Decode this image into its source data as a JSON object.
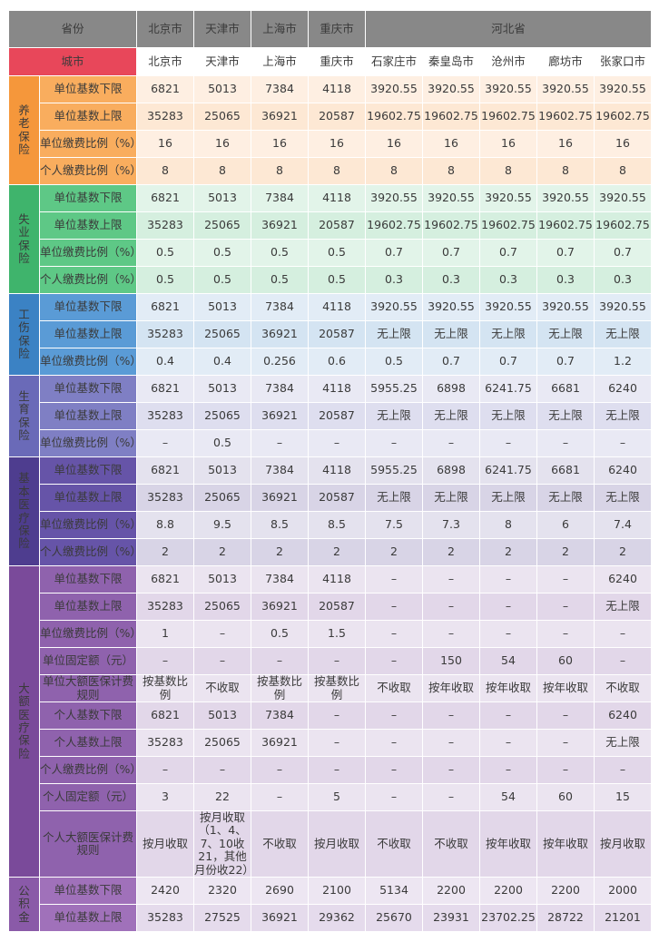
{
  "header": {
    "province_label": "省份",
    "city_label": "城市",
    "provinces": [
      "北京市",
      "天津市",
      "上海市",
      "重庆市",
      "河北省"
    ],
    "cities": [
      "北京市",
      "天津市",
      "上海市",
      "重庆市",
      "石家庄市",
      "秦皇岛市",
      "沧州市",
      "廊坊市",
      "张家口市"
    ]
  },
  "colors": {
    "province_header_bg": "#888888",
    "city_header_bg": "#e8475a",
    "pension": "#f5973b",
    "unemployment": "#3fb46c",
    "injury": "#3b82c4",
    "maternity": "#6a6ab8",
    "medical": "#4e3d8f",
    "major_medical": "#7a4a9a",
    "housing_fund": "#8a5aa8"
  },
  "sections": [
    {
      "name": "养老保险",
      "color": "#f5973b",
      "label_bg": "#f9ad5e",
      "rows": [
        {
          "label": "单位基数下限",
          "values": [
            "6821",
            "5013",
            "7384",
            "4118",
            "3920.55",
            "3920.55",
            "3920.55",
            "3920.55",
            "3920.55"
          ]
        },
        {
          "label": "单位基数上限",
          "values": [
            "35283",
            "25065",
            "36921",
            "20587",
            "19602.75",
            "19602.75",
            "19602.75",
            "19602.75",
            "19602.75"
          ]
        },
        {
          "label": "单位缴费比例（%）",
          "values": [
            "16",
            "16",
            "16",
            "16",
            "16",
            "16",
            "16",
            "16",
            "16"
          ]
        },
        {
          "label": "个人缴费比例（%）",
          "values": [
            "8",
            "8",
            "8",
            "8",
            "8",
            "8",
            "8",
            "8",
            "8"
          ]
        }
      ]
    },
    {
      "name": "失业保险",
      "color": "#3fb46c",
      "label_bg": "#5ec886",
      "rows": [
        {
          "label": "单位基数下限",
          "values": [
            "6821",
            "5013",
            "7384",
            "4118",
            "3920.55",
            "3920.55",
            "3920.55",
            "3920.55",
            "3920.55"
          ]
        },
        {
          "label": "单位基数上限",
          "values": [
            "35283",
            "25065",
            "36921",
            "20587",
            "19602.75",
            "19602.75",
            "19602.75",
            "19602.75",
            "19602.75"
          ]
        },
        {
          "label": "单位缴费比例（%）",
          "values": [
            "0.5",
            "0.5",
            "0.5",
            "0.5",
            "0.7",
            "0.7",
            "0.7",
            "0.7",
            "0.7"
          ]
        },
        {
          "label": "个人缴费比例（%）",
          "values": [
            "0.5",
            "0.5",
            "0.5",
            "0.5",
            "0.3",
            "0.3",
            "0.3",
            "0.3",
            "0.3"
          ]
        }
      ]
    },
    {
      "name": "工伤保险",
      "color": "#3b82c4",
      "label_bg": "#5a9bd6",
      "rows": [
        {
          "label": "单位基数下限",
          "values": [
            "6821",
            "5013",
            "7384",
            "4118",
            "3920.55",
            "3920.55",
            "3920.55",
            "3920.55",
            "3920.55"
          ]
        },
        {
          "label": "单位基数上限",
          "values": [
            "35283",
            "25065",
            "36921",
            "20587",
            "无上限",
            "无上限",
            "无上限",
            "无上限",
            "无上限"
          ]
        },
        {
          "label": "单位缴费比例（%）",
          "values": [
            "0.4",
            "0.4",
            "0.256",
            "0.6",
            "0.5",
            "0.7",
            "0.7",
            "0.7",
            "1.2"
          ]
        }
      ]
    },
    {
      "name": "生育保险",
      "color": "#6a6ab8",
      "label_bg": "#7f7fc4",
      "rows": [
        {
          "label": "单位基数下限",
          "values": [
            "6821",
            "5013",
            "7384",
            "4118",
            "5955.25",
            "6898",
            "6241.75",
            "6681",
            "6240"
          ]
        },
        {
          "label": "单位基数上限",
          "values": [
            "35283",
            "25065",
            "36921",
            "20587",
            "无上限",
            "无上限",
            "无上限",
            "无上限",
            "无上限"
          ]
        },
        {
          "label": "单位缴费比例（%）",
          "values": [
            "–",
            "0.5",
            "–",
            "–",
            "–",
            "–",
            "–",
            "–",
            "–"
          ]
        }
      ]
    },
    {
      "name": "基本医疗保险",
      "color": "#4e3d8f",
      "label_bg": "#6654a8",
      "rows": [
        {
          "label": "单位基数下限",
          "values": [
            "6821",
            "5013",
            "7384",
            "4118",
            "5955.25",
            "6898",
            "6241.75",
            "6681",
            "6240"
          ]
        },
        {
          "label": "单位基数上限",
          "values": [
            "35283",
            "25065",
            "36921",
            "20587",
            "无上限",
            "无上限",
            "无上限",
            "无上限",
            "无上限"
          ]
        },
        {
          "label": "单位缴费比例（%）",
          "values": [
            "8.8",
            "9.5",
            "8.5",
            "8.5",
            "7.5",
            "7.3",
            "8",
            "6",
            "7.4"
          ]
        },
        {
          "label": "个人缴费比例（%）",
          "values": [
            "2",
            "2",
            "2",
            "2",
            "2",
            "2",
            "2",
            "2",
            "2"
          ]
        }
      ]
    },
    {
      "name": "大额医疗保险",
      "color": "#7a4a9a",
      "label_bg": "#8f62ad",
      "rows": [
        {
          "label": "单位基数下限",
          "values": [
            "6821",
            "5013",
            "7384",
            "4118",
            "–",
            "–",
            "–",
            "–",
            "6240"
          ]
        },
        {
          "label": "单位基数上限",
          "values": [
            "35283",
            "25065",
            "36921",
            "20587",
            "–",
            "–",
            "–",
            "–",
            "无上限"
          ]
        },
        {
          "label": "单位缴费比例（%）",
          "values": [
            "1",
            "–",
            "0.5",
            "1.5",
            "–",
            "–",
            "–",
            "–",
            "–"
          ]
        },
        {
          "label": "单位固定额（元）",
          "values": [
            "–",
            "–",
            "–",
            "–",
            "–",
            "150",
            "54",
            "60",
            "–"
          ]
        },
        {
          "label": "单位大额医保计费规则",
          "values": [
            "按基数比例",
            "不收取",
            "按基数比例",
            "按基数比例",
            "不收取",
            "按年收取",
            "按年收取",
            "按年收取",
            "不收取"
          ]
        },
        {
          "label": "个人基数下限",
          "values": [
            "6821",
            "5013",
            "7384",
            "–",
            "–",
            "–",
            "–",
            "–",
            "6240"
          ]
        },
        {
          "label": "个人基数上限",
          "values": [
            "35283",
            "25065",
            "36921",
            "–",
            "–",
            "–",
            "–",
            "–",
            "无上限"
          ]
        },
        {
          "label": "个人缴费比例（%）",
          "values": [
            "–",
            "–",
            "–",
            "–",
            "–",
            "–",
            "–",
            "–",
            "–"
          ]
        },
        {
          "label": "个人固定额（元）",
          "values": [
            "3",
            "22",
            "–",
            "5",
            "–",
            "–",
            "54",
            "60",
            "15"
          ]
        },
        {
          "label": "个人大额医保计费规则",
          "values": [
            "按月收取",
            "按月收取（1、4、7、10收21，其他月份收22）",
            "不收取",
            "按月收取",
            "不收取",
            "不收取",
            "按年收取",
            "按年收取",
            "按月收取"
          ]
        }
      ]
    },
    {
      "name": "公积金",
      "color": "#8a5aa8",
      "label_bg": "#a071ba",
      "rows": [
        {
          "label": "单位基数下限",
          "values": [
            "2420",
            "2320",
            "2690",
            "2100",
            "5134",
            "2200",
            "2200",
            "2200",
            "2000"
          ]
        },
        {
          "label": "单位基数上限",
          "values": [
            "35283",
            "27525",
            "36921",
            "29362",
            "25670",
            "23931",
            "23702.25",
            "28722",
            "21201"
          ]
        }
      ]
    }
  ]
}
